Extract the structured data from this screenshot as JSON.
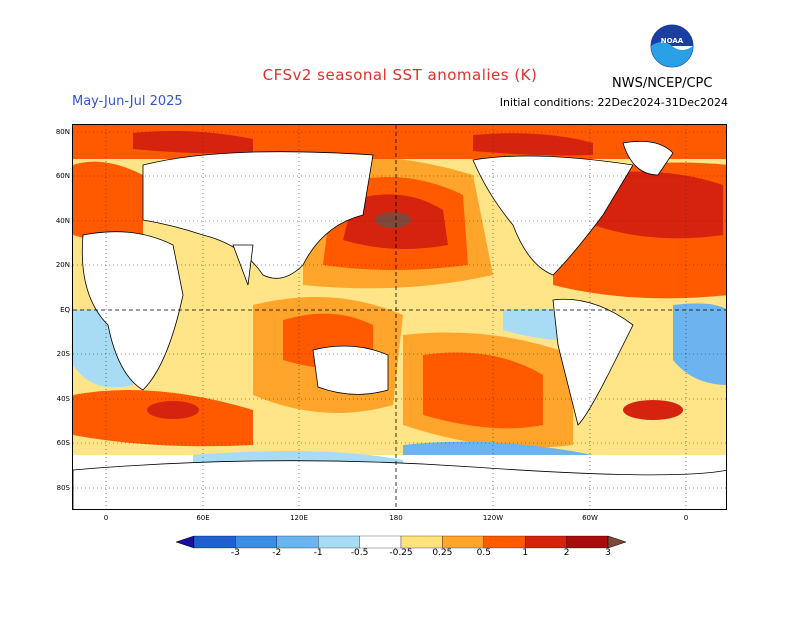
{
  "header": {
    "title": "CFSv2 seasonal SST anomalies (K)",
    "season": "May-Jun-Jul 2025",
    "initial_conditions": "Initial conditions: 22Dec2024-31Dec2024",
    "agency": "NWS/NCEP/CPC",
    "logo_text": "NOAA"
  },
  "map": {
    "lat_labels": [
      "80N",
      "60N",
      "40N",
      "20N",
      "EQ",
      "20S",
      "40S",
      "60S",
      "80S"
    ],
    "lon_labels": [
      "0",
      "60E",
      "120E",
      "180",
      "120W",
      "60W",
      "0"
    ]
  },
  "colorbar": {
    "labels": [
      "-3",
      "-2",
      "-1",
      "-0.5",
      "-0.25",
      "0.25",
      "0.5",
      "1",
      "2",
      "3"
    ],
    "colors": [
      "#1a10a0",
      "#1f5fd0",
      "#3a8ee6",
      "#6cb4f0",
      "#a8dcf4",
      "#ffffff",
      "#ffe27a",
      "#ffa52c",
      "#ff5a00",
      "#d6230e",
      "#a80c0c",
      "#80483a"
    ]
  }
}
